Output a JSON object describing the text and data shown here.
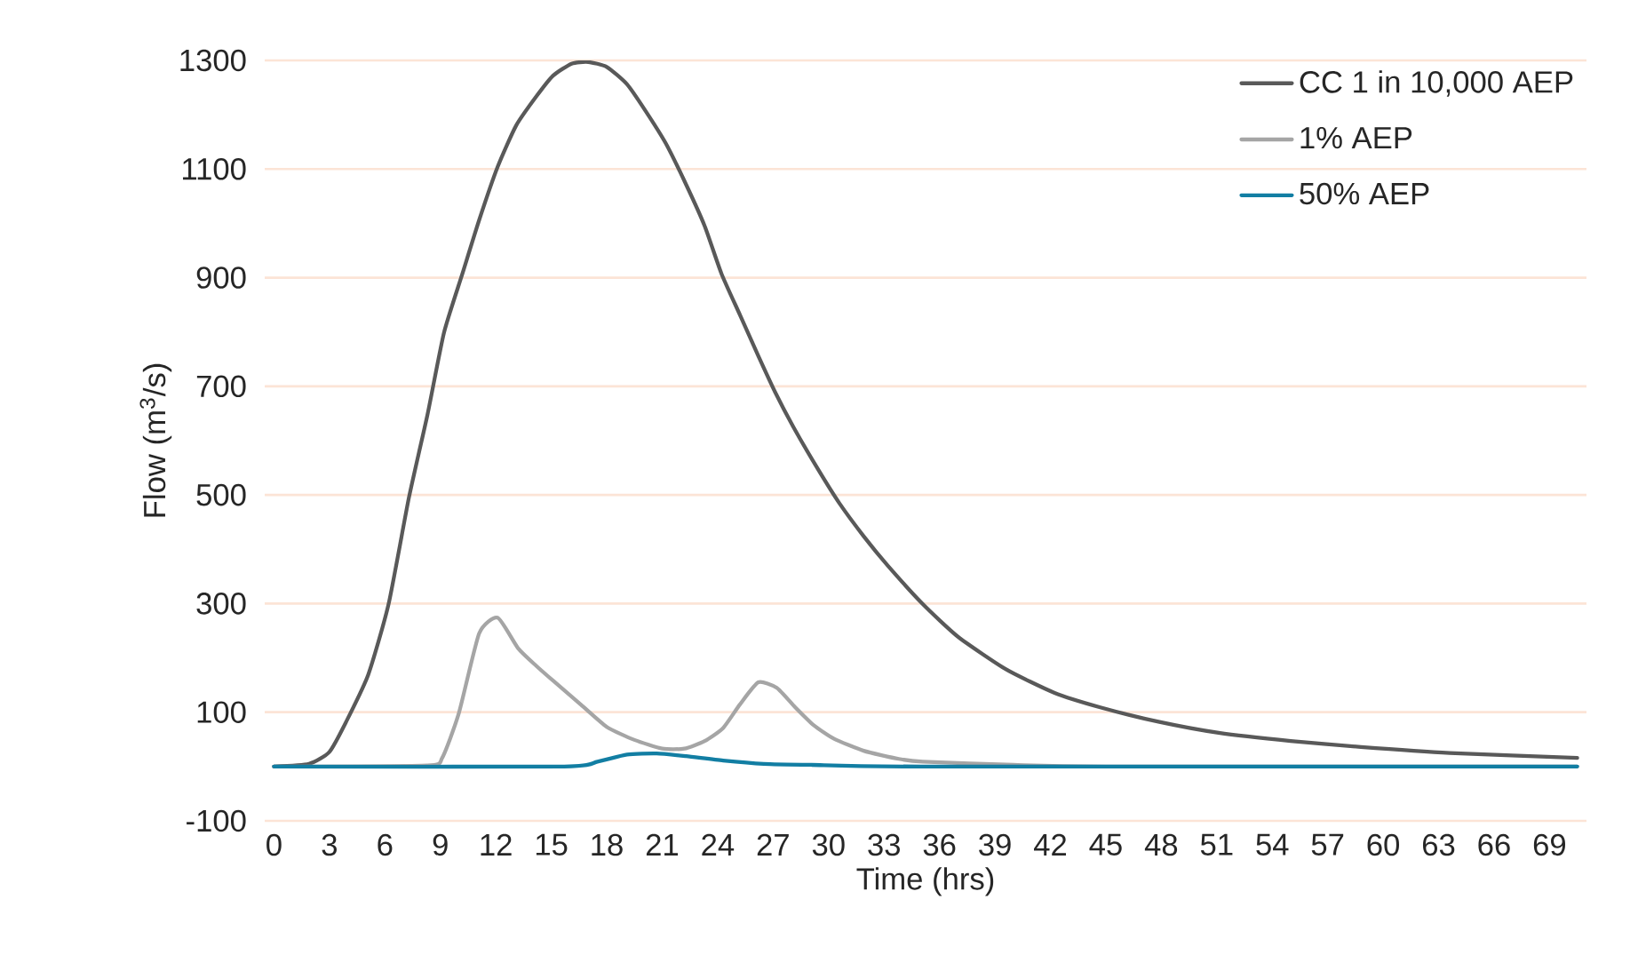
{
  "chart_data": {
    "type": "line",
    "xlabel": "Time (hrs)",
    "ylabel": "Flow (m$^{3}$/s)",
    "xlim": [
      -0.5,
      71
    ],
    "ylim": [
      -100,
      1300
    ],
    "xticks": [
      0,
      3,
      6,
      9,
      12,
      15,
      18,
      21,
      24,
      27,
      30,
      33,
      36,
      39,
      42,
      45,
      48,
      51,
      54,
      57,
      60,
      63,
      66,
      69
    ],
    "yticks": [
      -100,
      100,
      300,
      500,
      700,
      900,
      1100,
      1300
    ],
    "grid": "y",
    "legend": "top right",
    "marker": "none",
    "line_style": "solid",
    "series": [
      {
        "name": "CC 1 in 10,000 AEP",
        "color": "#595959",
        "x": [
          0,
          1.9,
          3,
          3.9,
          5.1,
          6.2,
          7.3,
          8.3,
          9.2,
          10.2,
          11.1,
          12.1,
          13.1,
          14.2,
          15.1,
          16.1,
          17,
          18,
          19.1,
          20.1,
          21.2,
          22.3,
          23.3,
          24.2,
          25.2,
          26.2,
          27.1,
          28.1,
          29.4,
          30.6,
          31.9,
          33.2,
          35.1,
          37,
          39.6,
          42.2,
          44.7,
          47.9,
          51.1,
          55,
          58.8,
          63.6,
          70.5
        ],
        "values": [
          0,
          5,
          27,
          82,
          169,
          299,
          495,
          647,
          799,
          908,
          1006,
          1104,
          1180,
          1234,
          1272,
          1294,
          1297,
          1288,
          1256,
          1207,
          1147,
          1071,
          995,
          908,
          832,
          756,
          690,
          625,
          549,
          484,
          424,
          370,
          299,
          239,
          179,
          136,
          109,
          82,
          62,
          47,
          36,
          25,
          16
        ]
      },
      {
        "name": "1% AEP",
        "color": "#a5a5a5",
        "x": [
          0,
          8.3,
          9.1,
          10,
          11.1,
          12.1,
          13.2,
          14.2,
          15.1,
          16.6,
          18,
          19.5,
          21,
          22.2,
          23.3,
          24.3,
          25.2,
          26.2,
          27.2,
          28.2,
          29.2,
          30.3,
          31.9,
          33.8,
          35.1,
          40,
          45,
          70.5
        ],
        "values": [
          0,
          2,
          16,
          98,
          245,
          274,
          218,
          185,
          158,
          114,
          73,
          49,
          33,
          33,
          47,
          71,
          114,
          155,
          145,
          109,
          76,
          51,
          29,
          14,
          9,
          3,
          0,
          0
        ]
      },
      {
        "name": "50% AEP",
        "color": "#127ea3",
        "x": [
          0,
          15.7,
          17.5,
          19.1,
          20.7,
          22.3,
          24.3,
          26.5,
          29.1,
          35,
          70.5
        ],
        "values": [
          0,
          0,
          9,
          22,
          24,
          19,
          11,
          5,
          3,
          0,
          0
        ]
      }
    ]
  }
}
